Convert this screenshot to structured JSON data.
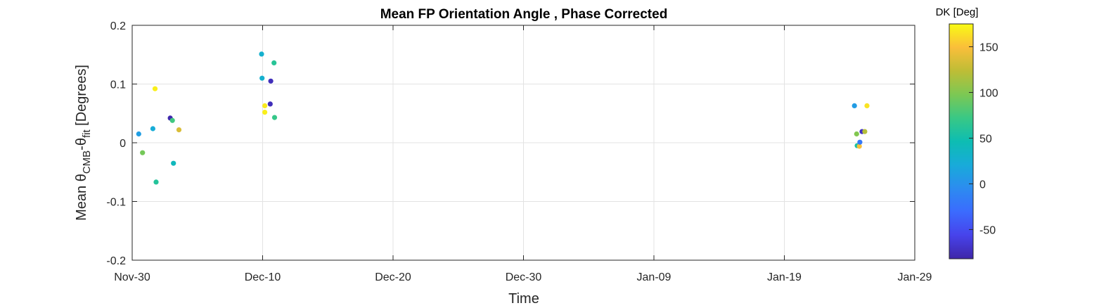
{
  "chart_data": {
    "type": "scatter",
    "title": "Mean FP Orientation Angle , Phase Corrected",
    "xlabel": "Time",
    "ylabel": {
      "prefix": "Mean θ",
      "sub1": "CMB",
      "mid": "-θ",
      "sub2": "fit",
      "suffix": " [Degrees]"
    },
    "x_ticks": [
      "Nov-30",
      "Dec-10",
      "Dec-20",
      "Dec-30",
      "Jan-09",
      "Jan-19",
      "Jan-29"
    ],
    "xlim": [
      "Nov-30",
      "Jan-29"
    ],
    "ylim": [
      -0.2,
      0.2
    ],
    "y_ticks": [
      "-0.2",
      "-0.1",
      "0",
      "0.1",
      "0.2"
    ],
    "grid": true,
    "colorbar": {
      "label": "DK [Deg]",
      "range": [
        -82,
        175
      ],
      "ticks": [
        "-50",
        "0",
        "50",
        "100",
        "150"
      ],
      "colormap": "parula"
    },
    "points": [
      {
        "x": "Nov-30 12:00",
        "y": 0.015,
        "dk": 10
      },
      {
        "x": "Nov-30 19:00",
        "y": -0.017,
        "dk": 95
      },
      {
        "x": "Dec-01 14:00",
        "y": 0.024,
        "dk": 22
      },
      {
        "x": "Dec-01 18:00",
        "y": 0.092,
        "dk": 170
      },
      {
        "x": "Dec-01 20:00",
        "y": -0.067,
        "dk": 60
      },
      {
        "x": "Dec-02 22:00",
        "y": 0.042,
        "dk": -80
      },
      {
        "x": "Dec-03 02:00",
        "y": 0.038,
        "dk": 75
      },
      {
        "x": "Dec-03 04:00",
        "y": -0.035,
        "dk": 40
      },
      {
        "x": "Dec-03 14:00",
        "y": 0.022,
        "dk": 135
      },
      {
        "x": "Dec-09 22:00",
        "y": 0.151,
        "dk": 28
      },
      {
        "x": "Dec-09 23:00",
        "y": 0.11,
        "dk": 28
      },
      {
        "x": "Dec-10 04:00",
        "y": 0.063,
        "dk": 168
      },
      {
        "x": "Dec-10 04:00",
        "y": 0.052,
        "dk": 170
      },
      {
        "x": "Dec-10 14:00",
        "y": 0.066,
        "dk": -75
      },
      {
        "x": "Dec-10 15:00",
        "y": 0.105,
        "dk": -75
      },
      {
        "x": "Dec-10 21:00",
        "y": 0.136,
        "dk": 62
      },
      {
        "x": "Dec-10 22:00",
        "y": 0.043,
        "dk": 70
      },
      {
        "x": "Jan-24 09:00",
        "y": 0.063,
        "dk": 8
      },
      {
        "x": "Jan-24 13:00",
        "y": 0.015,
        "dk": 100
      },
      {
        "x": "Jan-24 14:00",
        "y": -0.005,
        "dk": 55
      },
      {
        "x": "Jan-24 18:00",
        "y": -0.006,
        "dk": 150
      },
      {
        "x": "Jan-24 19:00",
        "y": 0.001,
        "dk": -20
      },
      {
        "x": "Jan-24 23:00",
        "y": 0.019,
        "dk": -72
      },
      {
        "x": "Jan-25 04:00",
        "y": 0.019,
        "dk": 120
      },
      {
        "x": "Jan-25 08:00",
        "y": 0.063,
        "dk": 165
      }
    ]
  }
}
